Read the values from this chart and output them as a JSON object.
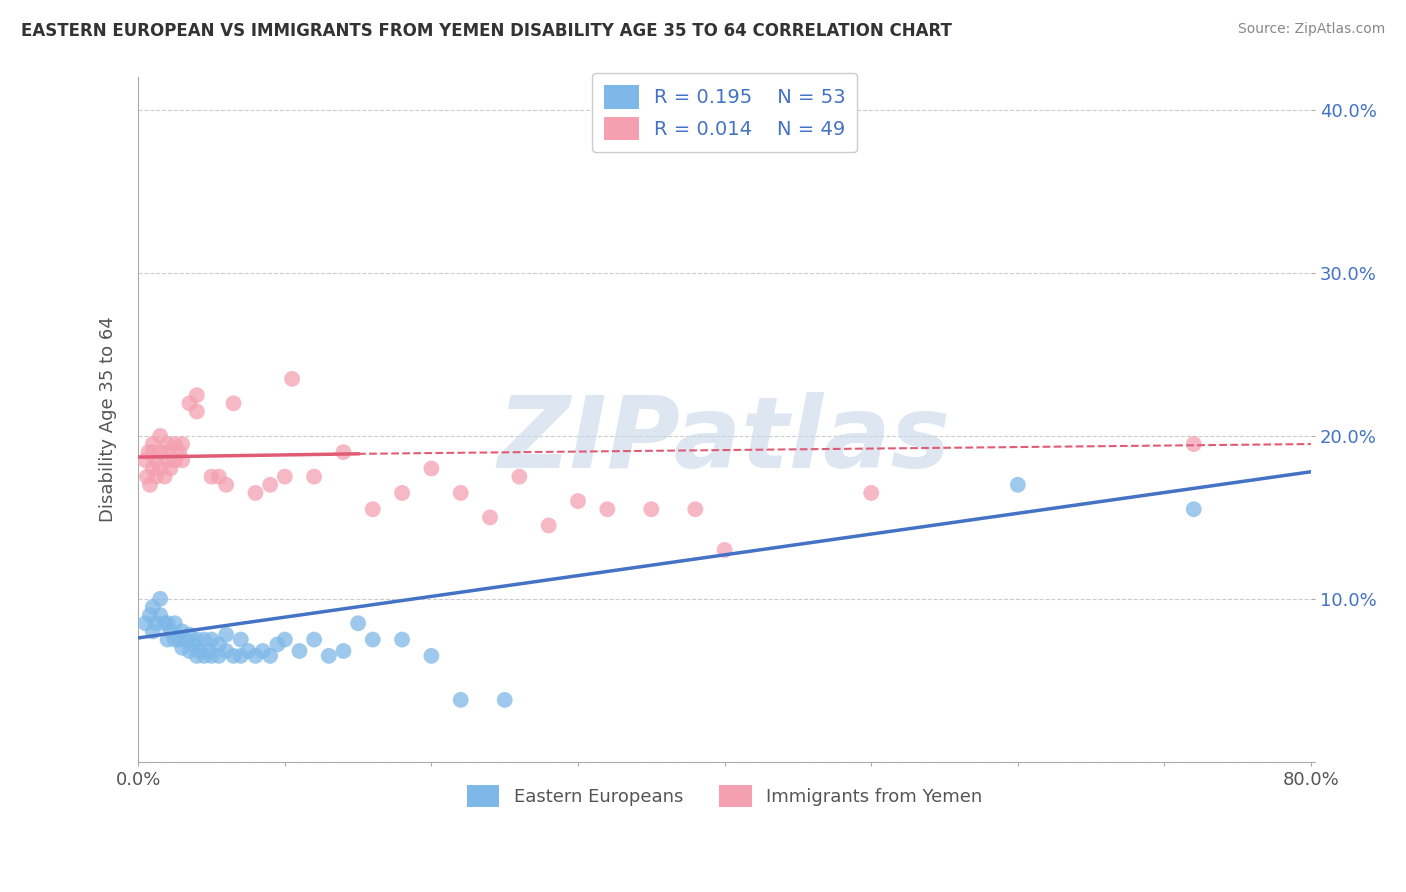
{
  "title": "EASTERN EUROPEAN VS IMMIGRANTS FROM YEMEN DISABILITY AGE 35 TO 64 CORRELATION CHART",
  "source": "Source: ZipAtlas.com",
  "ylabel": "Disability Age 35 to 64",
  "xlim": [
    0.0,
    0.8
  ],
  "ylim": [
    0.0,
    0.42
  ],
  "xticks": [
    0.0,
    0.1,
    0.2,
    0.3,
    0.4,
    0.5,
    0.6,
    0.7,
    0.8
  ],
  "yticks": [
    0.0,
    0.1,
    0.2,
    0.3,
    0.4
  ],
  "blue_color": "#7EB8E8",
  "pink_color": "#F4A0B0",
  "blue_line_color": "#4472C4",
  "pink_line_solid_color": "#E05C75",
  "pink_line_dash_color": "#E05C75",
  "legend_blue_R": "0.195",
  "legend_blue_N": "53",
  "legend_pink_R": "0.014",
  "legend_pink_N": "49",
  "blue_scatter_x": [
    0.005,
    0.008,
    0.01,
    0.01,
    0.012,
    0.015,
    0.015,
    0.018,
    0.02,
    0.02,
    0.022,
    0.025,
    0.025,
    0.028,
    0.03,
    0.03,
    0.032,
    0.035,
    0.035,
    0.038,
    0.04,
    0.04,
    0.042,
    0.045,
    0.045,
    0.048,
    0.05,
    0.05,
    0.055,
    0.055,
    0.06,
    0.06,
    0.065,
    0.07,
    0.07,
    0.075,
    0.08,
    0.085,
    0.09,
    0.095,
    0.1,
    0.11,
    0.12,
    0.13,
    0.14,
    0.15,
    0.16,
    0.18,
    0.2,
    0.22,
    0.25,
    0.6,
    0.72
  ],
  "blue_scatter_y": [
    0.085,
    0.09,
    0.08,
    0.095,
    0.085,
    0.09,
    0.1,
    0.085,
    0.075,
    0.085,
    0.08,
    0.075,
    0.085,
    0.075,
    0.07,
    0.08,
    0.075,
    0.068,
    0.078,
    0.072,
    0.065,
    0.075,
    0.068,
    0.065,
    0.075,
    0.068,
    0.065,
    0.075,
    0.065,
    0.072,
    0.068,
    0.078,
    0.065,
    0.065,
    0.075,
    0.068,
    0.065,
    0.068,
    0.065,
    0.072,
    0.075,
    0.068,
    0.075,
    0.065,
    0.068,
    0.085,
    0.075,
    0.075,
    0.065,
    0.038,
    0.038,
    0.17,
    0.155
  ],
  "pink_scatter_x": [
    0.005,
    0.006,
    0.007,
    0.008,
    0.01,
    0.01,
    0.01,
    0.012,
    0.012,
    0.015,
    0.015,
    0.015,
    0.018,
    0.02,
    0.02,
    0.02,
    0.022,
    0.025,
    0.025,
    0.028,
    0.03,
    0.03,
    0.035,
    0.04,
    0.04,
    0.05,
    0.055,
    0.06,
    0.065,
    0.08,
    0.09,
    0.1,
    0.105,
    0.12,
    0.14,
    0.16,
    0.18,
    0.2,
    0.22,
    0.24,
    0.26,
    0.28,
    0.3,
    0.32,
    0.35,
    0.38,
    0.4,
    0.5,
    0.72
  ],
  "pink_scatter_y": [
    0.185,
    0.175,
    0.19,
    0.17,
    0.18,
    0.19,
    0.195,
    0.175,
    0.185,
    0.18,
    0.19,
    0.2,
    0.175,
    0.185,
    0.19,
    0.195,
    0.18,
    0.185,
    0.195,
    0.19,
    0.185,
    0.195,
    0.22,
    0.215,
    0.225,
    0.175,
    0.175,
    0.17,
    0.22,
    0.165,
    0.17,
    0.175,
    0.235,
    0.175,
    0.19,
    0.155,
    0.165,
    0.18,
    0.165,
    0.15,
    0.175,
    0.145,
    0.16,
    0.155,
    0.155,
    0.155,
    0.13,
    0.165,
    0.195
  ],
  "blue_line_x0": 0.0,
  "blue_line_y0": 0.076,
  "blue_line_x1": 0.8,
  "blue_line_y1": 0.178,
  "pink_line_solid_x0": 0.0,
  "pink_line_solid_y0": 0.187,
  "pink_line_solid_x1": 0.15,
  "pink_line_solid_y1": 0.189,
  "pink_line_dash_x0": 0.15,
  "pink_line_dash_y0": 0.189,
  "pink_line_dash_x1": 0.8,
  "pink_line_dash_y1": 0.195,
  "watermark": "ZIPatlas",
  "watermark_color": "#C8D8E8",
  "watermark_fontsize": 72,
  "background_color": "#FFFFFF",
  "grid_color": "#CCCCCC"
}
